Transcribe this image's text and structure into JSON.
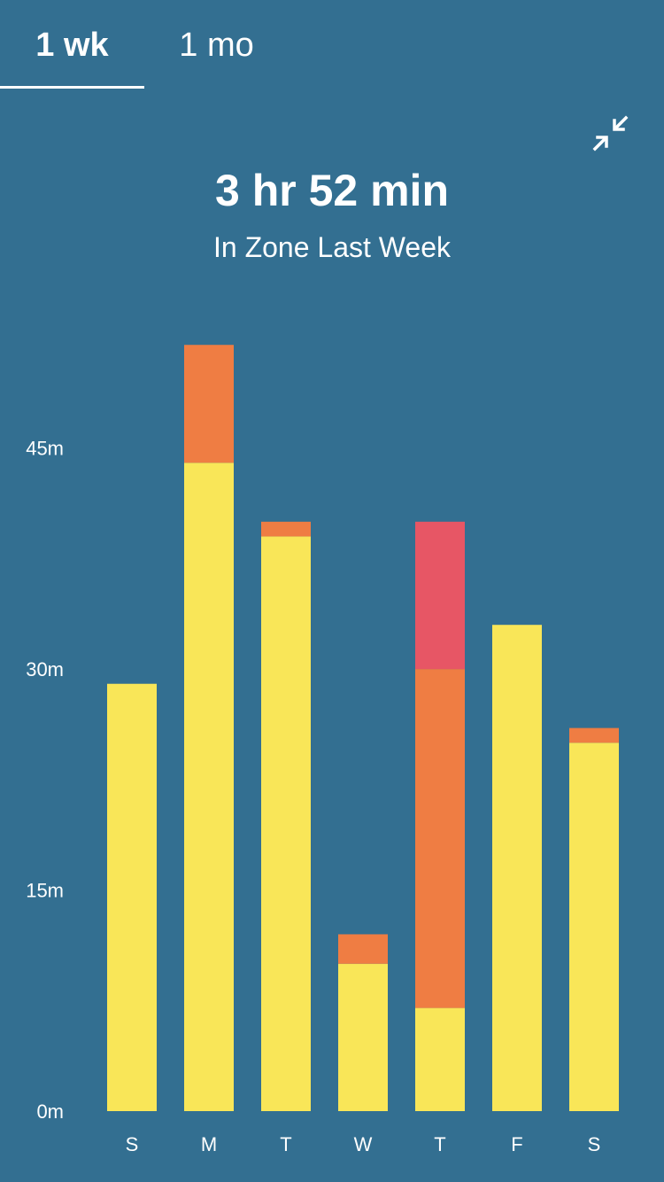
{
  "tabs": [
    {
      "label": "1 wk",
      "selected": true
    },
    {
      "label": "1 mo",
      "selected": false
    }
  ],
  "collapse_icon": "collapse-arrows-icon",
  "summary": {
    "value": "3 hr 52 min",
    "label": "In Zone Last Week"
  },
  "colors": {
    "background": "#336f91",
    "fat_burn": "#f9e658",
    "cardio": "#ef7d43",
    "peak": "#e75665"
  },
  "chart_data": {
    "type": "bar",
    "stacked": true,
    "categories": [
      "S",
      "M",
      "T",
      "W",
      "T",
      "F",
      "S"
    ],
    "series": [
      {
        "values": [
          29,
          44,
          39,
          10,
          7,
          33,
          25
        ]
      },
      {
        "values": [
          0,
          8,
          1,
          2,
          23,
          0,
          1
        ]
      },
      {
        "values": [
          0,
          0,
          0,
          0,
          10,
          0,
          0
        ]
      }
    ],
    "ylim": [
      0,
      52
    ],
    "yticks": [
      {
        "value": 0,
        "label": "0m"
      },
      {
        "value": 15,
        "label": "15m"
      },
      {
        "value": 30,
        "label": "30m"
      },
      {
        "value": 45,
        "label": "45m"
      }
    ],
    "grid": false,
    "xlabel": "",
    "ylabel": ""
  }
}
